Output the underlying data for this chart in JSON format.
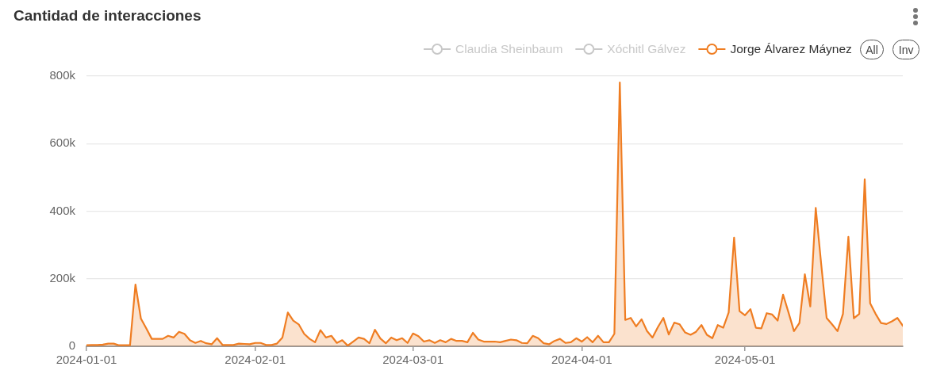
{
  "chart_data": {
    "type": "area",
    "title": "Cantidad de interacciones",
    "x": [
      "2024-01-01",
      "2024-01-02",
      "2024-01-03",
      "2024-01-04",
      "2024-01-05",
      "2024-01-06",
      "2024-01-07",
      "2024-01-08",
      "2024-01-09",
      "2024-01-10",
      "2024-01-11",
      "2024-01-12",
      "2024-01-13",
      "2024-01-14",
      "2024-01-15",
      "2024-01-16",
      "2024-01-17",
      "2024-01-18",
      "2024-01-19",
      "2024-01-20",
      "2024-01-21",
      "2024-01-22",
      "2024-01-23",
      "2024-01-24",
      "2024-01-25",
      "2024-01-26",
      "2024-01-27",
      "2024-01-28",
      "2024-01-29",
      "2024-01-30",
      "2024-01-31",
      "2024-02-01",
      "2024-02-02",
      "2024-02-03",
      "2024-02-04",
      "2024-02-05",
      "2024-02-06",
      "2024-02-07",
      "2024-02-08",
      "2024-02-09",
      "2024-02-10",
      "2024-02-11",
      "2024-02-12",
      "2024-02-13",
      "2024-02-14",
      "2024-02-15",
      "2024-02-16",
      "2024-02-17",
      "2024-02-18",
      "2024-02-19",
      "2024-02-20",
      "2024-02-21",
      "2024-02-22",
      "2024-02-23",
      "2024-02-24",
      "2024-02-25",
      "2024-02-26",
      "2024-02-27",
      "2024-02-28",
      "2024-02-29",
      "2024-03-01",
      "2024-03-02",
      "2024-03-03",
      "2024-03-04",
      "2024-03-05",
      "2024-03-06",
      "2024-03-07",
      "2024-03-08",
      "2024-03-09",
      "2024-03-10",
      "2024-03-11",
      "2024-03-12",
      "2024-03-13",
      "2024-03-14",
      "2024-03-15",
      "2024-03-16",
      "2024-03-17",
      "2024-03-18",
      "2024-03-19",
      "2024-03-20",
      "2024-03-21",
      "2024-03-22",
      "2024-03-23",
      "2024-03-24",
      "2024-03-25",
      "2024-03-26",
      "2024-03-27",
      "2024-03-28",
      "2024-03-29",
      "2024-03-30",
      "2024-03-31",
      "2024-04-01",
      "2024-04-02",
      "2024-04-03",
      "2024-04-04",
      "2024-04-05",
      "2024-04-06",
      "2024-04-07",
      "2024-04-08",
      "2024-04-09",
      "2024-04-10",
      "2024-04-11",
      "2024-04-12",
      "2024-04-13",
      "2024-04-14",
      "2024-04-15",
      "2024-04-16",
      "2024-04-17",
      "2024-04-18",
      "2024-04-19",
      "2024-04-20",
      "2024-04-21",
      "2024-04-22",
      "2024-04-23",
      "2024-04-24",
      "2024-04-25",
      "2024-04-26",
      "2024-04-27",
      "2024-04-28",
      "2024-04-29",
      "2024-04-30",
      "2024-05-01",
      "2024-05-02",
      "2024-05-03",
      "2024-05-04",
      "2024-05-05",
      "2024-05-06",
      "2024-05-07",
      "2024-05-08",
      "2024-05-09",
      "2024-05-10",
      "2024-05-11",
      "2024-05-12",
      "2024-05-13",
      "2024-05-14",
      "2024-05-15",
      "2024-05-16",
      "2024-05-17",
      "2024-05-18",
      "2024-05-19",
      "2024-05-20",
      "2024-05-21",
      "2024-05-22",
      "2024-05-23",
      "2024-05-24",
      "2024-05-25",
      "2024-05-26",
      "2024-05-27",
      "2024-05-28",
      "2024-05-29",
      "2024-05-30"
    ],
    "series": [
      {
        "name": "Claudia Sheinbaum",
        "color": "#c8c8c8",
        "values": [
          null,
          null,
          null,
          null,
          null,
          null,
          null,
          null,
          null,
          null,
          null,
          null,
          null,
          null,
          null,
          null,
          null,
          null,
          null,
          null,
          null,
          null,
          null,
          null,
          null,
          null,
          null,
          null,
          null,
          null,
          null,
          null,
          null,
          null,
          null,
          null,
          null,
          null,
          null,
          null,
          null,
          null,
          null,
          null,
          null,
          null,
          null,
          null,
          null,
          null,
          null,
          null,
          null,
          null,
          null,
          null,
          null,
          null,
          null,
          null,
          null,
          null,
          null,
          null,
          null,
          null,
          null,
          null,
          null,
          null,
          null,
          null,
          null,
          null,
          null,
          null,
          null,
          null,
          null,
          null,
          null,
          null,
          null,
          null,
          null,
          null,
          null,
          null,
          null,
          null,
          null,
          null,
          null,
          null,
          null,
          null,
          null,
          null,
          null,
          null,
          null,
          null,
          null,
          null,
          null,
          null,
          null,
          null,
          null,
          null,
          null,
          null,
          null,
          null,
          null,
          null,
          null,
          null,
          null,
          null,
          null,
          null,
          null,
          null,
          null,
          null,
          null,
          null,
          null,
          null,
          null,
          null,
          null,
          null,
          null,
          null,
          null,
          null,
          null,
          null,
          null,
          null,
          null,
          null,
          null,
          null,
          null,
          null,
          null,
          null,
          null
        ]
      },
      {
        "name": "Xóchitl Gálvez",
        "color": "#c8c8c8",
        "values": [
          null,
          null,
          null,
          null,
          null,
          null,
          null,
          null,
          null,
          null,
          null,
          null,
          null,
          null,
          null,
          null,
          null,
          null,
          null,
          null,
          null,
          null,
          null,
          null,
          null,
          null,
          null,
          null,
          null,
          null,
          null,
          null,
          null,
          null,
          null,
          null,
          null,
          null,
          null,
          null,
          null,
          null,
          null,
          null,
          null,
          null,
          null,
          null,
          null,
          null,
          null,
          null,
          null,
          null,
          null,
          null,
          null,
          null,
          null,
          null,
          null,
          null,
          null,
          null,
          null,
          null,
          null,
          null,
          null,
          null,
          null,
          null,
          null,
          null,
          null,
          null,
          null,
          null,
          null,
          null,
          null,
          null,
          null,
          null,
          null,
          null,
          null,
          null,
          null,
          null,
          null,
          null,
          null,
          null,
          null,
          null,
          null,
          null,
          null,
          null,
          null,
          null,
          null,
          null,
          null,
          null,
          null,
          null,
          null,
          null,
          null,
          null,
          null,
          null,
          null,
          null,
          null,
          null,
          null,
          null,
          null,
          null,
          null,
          null,
          null,
          null,
          null,
          null,
          null,
          null,
          null,
          null,
          null,
          null,
          null,
          null,
          null,
          null,
          null,
          null,
          null,
          null,
          null,
          null,
          null,
          null,
          null,
          null,
          null,
          null,
          null
        ]
      },
      {
        "name": "Jorge Álvarez Máynez",
        "color": "#ef7d22",
        "values": [
          3000,
          4000,
          4000,
          5000,
          8000,
          8000,
          3000,
          3000,
          3000,
          183000,
          82000,
          53000,
          22000,
          22000,
          22000,
          31000,
          26000,
          43000,
          37000,
          18000,
          10000,
          16000,
          9000,
          6000,
          24000,
          4000,
          4000,
          4000,
          8000,
          7000,
          6000,
          10000,
          10000,
          4000,
          4000,
          8000,
          26000,
          100000,
          76000,
          65000,
          37000,
          22000,
          12000,
          48000,
          26000,
          31000,
          10000,
          18000,
          2000,
          14000,
          26000,
          22000,
          9000,
          49000,
          23000,
          9000,
          26000,
          18000,
          24000,
          10000,
          38000,
          30000,
          14000,
          18000,
          10000,
          18000,
          12000,
          22000,
          16000,
          16000,
          12000,
          40000,
          20000,
          14000,
          14000,
          14000,
          12000,
          16000,
          20000,
          18000,
          10000,
          9000,
          31000,
          24000,
          9000,
          6000,
          16000,
          22000,
          10000,
          12000,
          24000,
          14000,
          27000,
          12000,
          31000,
          12000,
          12000,
          37000,
          781000,
          78000,
          84000,
          59000,
          80000,
          45000,
          26000,
          57000,
          84000,
          35000,
          70000,
          65000,
          41000,
          34000,
          43000,
          63000,
          34000,
          24000,
          63000,
          55000,
          100000,
          322000,
          104000,
          92000,
          110000,
          55000,
          53000,
          98000,
          94000,
          76000,
          153000,
          100000,
          45000,
          69000,
          213000,
          118000,
          410000,
          244000,
          84000,
          65000,
          45000,
          96000,
          324000,
          83000,
          96000,
          494000,
          127000,
          96000,
          69000,
          66000,
          74000,
          84000,
          61000
        ]
      }
    ],
    "xlim": [
      "2024-01-01",
      "2024-05-30"
    ],
    "xticks": [
      "2024-01-01",
      "2024-02-01",
      "2024-03-01",
      "2024-04-01",
      "2024-05-01"
    ],
    "ylim": [
      0,
      800000
    ],
    "yticks": [
      0,
      {
        "value": 200000,
        "label": "200k"
      },
      {
        "value": 400000,
        "label": "400k"
      },
      {
        "value": 600000,
        "label": "600k"
      },
      {
        "value": 800000,
        "label": "800k"
      }
    ],
    "grid": "y",
    "legend": "top right",
    "annotations": [
      "All",
      "Inv"
    ]
  }
}
